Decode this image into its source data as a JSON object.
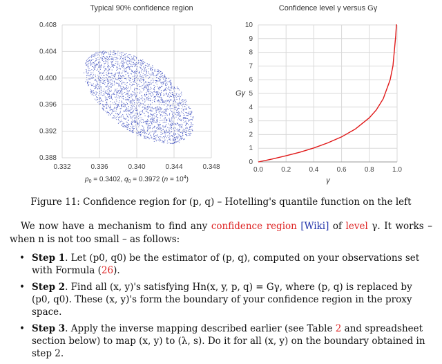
{
  "chart_data": [
    {
      "type": "scatter",
      "title": "Typical 90% confidence region",
      "xlabel": "p0 = 0.3402, q0 = 0.3972 (n = 10^4)",
      "xlabel_parts": [
        "p",
        "0",
        " = 0.3402, ",
        "q",
        "0",
        " = 0.3972 (",
        "n",
        " = 10",
        "4",
        ")"
      ],
      "ylabel": "",
      "xlim": [
        0.332,
        0.348
      ],
      "ylim": [
        0.388,
        0.408
      ],
      "x_ticks": [
        "0.332",
        "0.336",
        "0.340",
        "0.344",
        "0.348"
      ],
      "y_ticks": [
        "0.388",
        "0.392",
        "0.396",
        "0.400",
        "0.404",
        "0.408"
      ],
      "grid": true,
      "marker_color": "#3344bb",
      "region": {
        "center_x": 0.3402,
        "center_y": 0.3972,
        "shape": "tilted ellipse, negative correlation",
        "x_range": [
          0.3335,
          0.3465
        ],
        "y_range": [
          0.3905,
          0.4045
        ]
      }
    },
    {
      "type": "line",
      "title": "Confidence level γ versus Gγ",
      "xlabel": "γ",
      "ylabel": "Gγ",
      "xlim": [
        0.0,
        1.0
      ],
      "ylim": [
        0,
        10
      ],
      "x_ticks": [
        "0.0",
        "0.2",
        "0.4",
        "0.6",
        "0.8",
        "1.0"
      ],
      "y_ticks": [
        "0",
        "1",
        "2",
        "3",
        "4",
        "5",
        "6",
        "7",
        "8",
        "9",
        "10"
      ],
      "grid": true,
      "line_color": "#e01818",
      "series": [
        {
          "name": "Gγ",
          "x": [
            0.0,
            0.1,
            0.2,
            0.3,
            0.4,
            0.5,
            0.6,
            0.7,
            0.8,
            0.85,
            0.9,
            0.95,
            0.97,
            0.99,
            0.995,
            0.999
          ],
          "y": [
            0.0,
            0.21,
            0.45,
            0.71,
            1.02,
            1.39,
            1.83,
            2.41,
            3.22,
            3.79,
            4.61,
            5.99,
            7.01,
            9.21,
            10.0,
            10.0
          ]
        }
      ]
    }
  ],
  "figure": {
    "caption_label": "Figure 11:",
    "caption_text": "Confidence region for (p, q) – Hotelling's quantile function on the left"
  },
  "paragraph": {
    "t1": "We now have a mechanism to find any ",
    "link1": "confidence region",
    "wiki": "[Wiki]",
    "t2": " of ",
    "link2": "level",
    "t3": " γ. It works – when n is not too small – as follows:"
  },
  "steps": [
    {
      "head": "Step 1",
      "text_a": ". Let (p0, q0) be the estimator of (p, q), computed on your observations set with Formula (",
      "ref": "26",
      "text_b": ")."
    },
    {
      "head": "Step 2",
      "text_a": ". Find all (x, y)'s satisfying Hn(x, y, p, q) = Gγ, where (p, q) is replaced by (p0, q0). These (x, y)'s form the boundary of your confidence region in the proxy space.",
      "ref": "",
      "text_b": ""
    },
    {
      "head": "Step 3",
      "text_a": ". Apply the inverse mapping described earlier (see Table ",
      "ref": "2",
      "text_b": " and spreadsheet section below) to map (x, y) to (λ, s). Do it for all (x, y) on the boundary obtained in step 2."
    }
  ]
}
